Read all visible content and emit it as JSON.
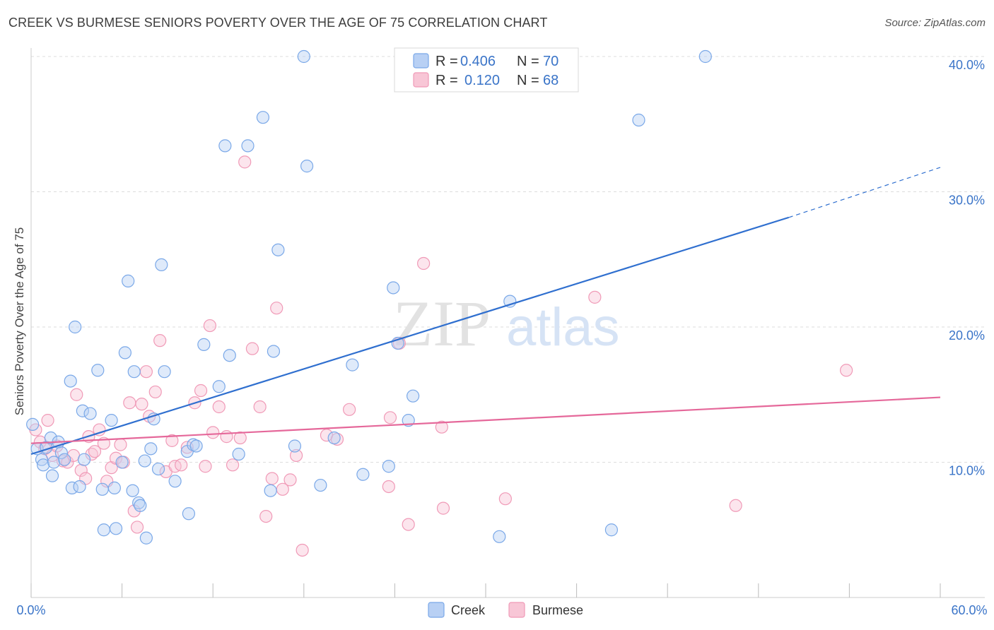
{
  "title": "CREEK VS BURMESE SENIORS POVERTY OVER THE AGE OF 75 CORRELATION CHART",
  "source": "Source: ZipAtlas.com",
  "watermark": {
    "zip": "ZIP",
    "atlas": "atlas"
  },
  "legend": {
    "rows": [
      {
        "r_label": "R =",
        "r_value": "0.406",
        "n_label": "N =",
        "n_value": "70"
      },
      {
        "r_label": "R =",
        "r_value": "0.120",
        "n_label": "N =",
        "n_value": "68"
      }
    ]
  },
  "chart_data": {
    "type": "scatter",
    "title": "CREEK VS BURMESE SENIORS POVERTY OVER THE AGE OF 75 CORRELATION CHART",
    "xlabel": "",
    "ylabel": "Seniors Poverty Over the Age of 75",
    "xlim": [
      0,
      60
    ],
    "ylim": [
      0,
      40
    ],
    "x_tick_labels": [
      "0.0%",
      "60.0%"
    ],
    "y_ticks": [
      10,
      20,
      30,
      40
    ],
    "y_tick_labels": [
      "10.0%",
      "20.0%",
      "30.0%",
      "40.0%"
    ],
    "grid": true,
    "legend_position": "top-center",
    "series": [
      {
        "name": "Creek",
        "color": "#7aa8e8",
        "fill": "#b8d0f4",
        "R": 0.406,
        "N": 70,
        "trend": {
          "x0": 0,
          "y0": 10.6,
          "x1": 50,
          "y1": 28.1,
          "dash_x1": 60,
          "dash_y1": 31.8
        },
        "points": [
          [
            0.1,
            12.8
          ],
          [
            0.4,
            11.0
          ],
          [
            0.7,
            10.2
          ],
          [
            0.8,
            9.8
          ],
          [
            1.0,
            11.1
          ],
          [
            1.3,
            11.8
          ],
          [
            1.4,
            9.0
          ],
          [
            1.5,
            10.0
          ],
          [
            1.8,
            11.5
          ],
          [
            2.0,
            10.7
          ],
          [
            2.2,
            10.2
          ],
          [
            2.6,
            16.0
          ],
          [
            2.7,
            8.1
          ],
          [
            2.9,
            20.0
          ],
          [
            3.2,
            8.2
          ],
          [
            3.4,
            13.8
          ],
          [
            3.5,
            10.2
          ],
          [
            3.9,
            13.6
          ],
          [
            4.4,
            16.8
          ],
          [
            4.7,
            8.0
          ],
          [
            4.8,
            5.0
          ],
          [
            5.3,
            13.1
          ],
          [
            5.5,
            8.1
          ],
          [
            5.6,
            5.1
          ],
          [
            6.0,
            10.0
          ],
          [
            6.2,
            18.1
          ],
          [
            6.4,
            23.4
          ],
          [
            6.7,
            7.9
          ],
          [
            6.8,
            16.7
          ],
          [
            7.1,
            7.0
          ],
          [
            7.2,
            6.8
          ],
          [
            7.5,
            10.1
          ],
          [
            7.6,
            4.4
          ],
          [
            7.9,
            11.0
          ],
          [
            8.1,
            13.2
          ],
          [
            8.4,
            9.5
          ],
          [
            8.6,
            24.6
          ],
          [
            8.8,
            16.7
          ],
          [
            9.5,
            8.6
          ],
          [
            10.3,
            10.8
          ],
          [
            10.4,
            6.2
          ],
          [
            10.7,
            11.3
          ],
          [
            10.9,
            11.2
          ],
          [
            11.4,
            18.7
          ],
          [
            12.4,
            15.6
          ],
          [
            12.8,
            33.4
          ],
          [
            13.1,
            17.9
          ],
          [
            13.7,
            10.6
          ],
          [
            14.3,
            33.4
          ],
          [
            15.3,
            35.5
          ],
          [
            15.8,
            7.9
          ],
          [
            16.0,
            18.2
          ],
          [
            16.3,
            25.7
          ],
          [
            17.4,
            11.2
          ],
          [
            18.0,
            40.0
          ],
          [
            18.2,
            31.9
          ],
          [
            19.1,
            8.3
          ],
          [
            20.0,
            11.8
          ],
          [
            21.2,
            17.2
          ],
          [
            21.9,
            9.1
          ],
          [
            23.6,
            9.7
          ],
          [
            23.9,
            22.9
          ],
          [
            24.2,
            18.8
          ],
          [
            24.9,
            13.1
          ],
          [
            25.2,
            14.9
          ],
          [
            30.9,
            4.5
          ],
          [
            31.6,
            21.9
          ],
          [
            38.3,
            5.0
          ],
          [
            40.1,
            35.3
          ],
          [
            44.5,
            40.0
          ]
        ]
      },
      {
        "name": "Burmese",
        "color": "#f09ab7",
        "fill": "#f8c6d6",
        "R": 0.12,
        "N": 68,
        "trend": {
          "x0": 0,
          "y0": 11.4,
          "x1": 60,
          "y1": 14.8
        },
        "points": [
          [
            0.3,
            12.4
          ],
          [
            0.6,
            11.5
          ],
          [
            0.9,
            11.0
          ],
          [
            1.1,
            13.1
          ],
          [
            1.4,
            10.5
          ],
          [
            1.7,
            11.2
          ],
          [
            2.1,
            10.1
          ],
          [
            2.4,
            10.0
          ],
          [
            2.8,
            10.5
          ],
          [
            3.0,
            15.0
          ],
          [
            3.3,
            9.4
          ],
          [
            3.6,
            8.8
          ],
          [
            3.8,
            11.9
          ],
          [
            4.0,
            10.6
          ],
          [
            4.2,
            10.8
          ],
          [
            4.5,
            12.4
          ],
          [
            4.8,
            11.4
          ],
          [
            5.0,
            8.6
          ],
          [
            5.3,
            9.6
          ],
          [
            5.6,
            10.3
          ],
          [
            5.9,
            11.3
          ],
          [
            6.1,
            10.0
          ],
          [
            6.5,
            14.4
          ],
          [
            6.8,
            6.4
          ],
          [
            7.0,
            5.2
          ],
          [
            7.3,
            14.3
          ],
          [
            7.6,
            16.7
          ],
          [
            7.8,
            13.4
          ],
          [
            8.2,
            15.2
          ],
          [
            8.5,
            19.0
          ],
          [
            8.9,
            9.3
          ],
          [
            9.3,
            11.6
          ],
          [
            9.5,
            9.7
          ],
          [
            9.9,
            9.8
          ],
          [
            10.3,
            11.1
          ],
          [
            10.8,
            14.4
          ],
          [
            11.2,
            15.3
          ],
          [
            11.5,
            9.7
          ],
          [
            11.8,
            20.1
          ],
          [
            12.0,
            12.2
          ],
          [
            12.4,
            14.1
          ],
          [
            12.9,
            11.9
          ],
          [
            13.3,
            9.8
          ],
          [
            13.8,
            11.8
          ],
          [
            14.1,
            32.2
          ],
          [
            14.6,
            18.4
          ],
          [
            15.1,
            14.1
          ],
          [
            15.5,
            6.0
          ],
          [
            15.9,
            8.8
          ],
          [
            16.2,
            21.4
          ],
          [
            16.6,
            8.0
          ],
          [
            17.1,
            8.7
          ],
          [
            17.5,
            10.5
          ],
          [
            17.9,
            3.5
          ],
          [
            19.5,
            12.0
          ],
          [
            20.2,
            11.7
          ],
          [
            21.0,
            13.9
          ],
          [
            23.6,
            8.2
          ],
          [
            23.7,
            13.3
          ],
          [
            24.3,
            18.8
          ],
          [
            24.9,
            5.4
          ],
          [
            25.9,
            24.7
          ],
          [
            27.1,
            12.6
          ],
          [
            27.2,
            6.6
          ],
          [
            31.3,
            7.3
          ],
          [
            37.2,
            22.2
          ],
          [
            46.5,
            6.8
          ],
          [
            53.8,
            16.8
          ]
        ]
      }
    ]
  }
}
